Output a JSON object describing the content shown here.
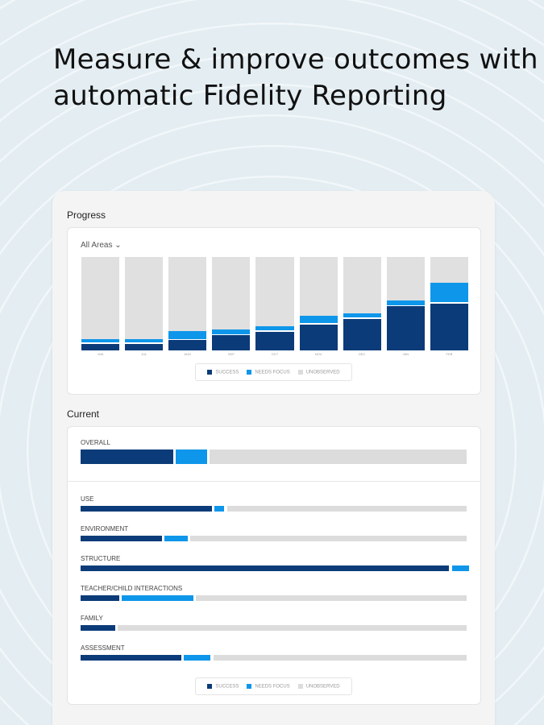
{
  "headline": "Measure & improve outcomes with automatic Fidelity Reporting",
  "colors": {
    "success": "#0b3b78",
    "needs_focus": "#0e96ea",
    "unobserved": "#dcdcdc"
  },
  "progress": {
    "title": "Progress",
    "filter": "All Areas",
    "filter_icon": "chevron-down-icon"
  },
  "current": {
    "title": "Current"
  },
  "legend": {
    "success": "SUCCESS",
    "needs_focus": "NEEDS FOCUS",
    "unobserved": "UNOBSERVED"
  },
  "chart_data": [
    {
      "type": "bar",
      "stacked": true,
      "title": "Progress",
      "categories": [
        "JUN",
        "JUL",
        "AUG",
        "SEP",
        "OCT",
        "NOV",
        "DEC",
        "JAN",
        "FEB"
      ],
      "ylim": [
        0,
        100
      ],
      "series": [
        {
          "name": "SUCCESS",
          "values": [
            7,
            7,
            11,
            16,
            20,
            28,
            34,
            47,
            50
          ]
        },
        {
          "name": "NEEDS FOCUS",
          "values": [
            4,
            4,
            8,
            5,
            4,
            8,
            4,
            5,
            21
          ]
        },
        {
          "name": "UNOBSERVED",
          "values": [
            89,
            89,
            81,
            79,
            76,
            64,
            62,
            48,
            29
          ]
        }
      ]
    },
    {
      "type": "bar",
      "orientation": "horizontal",
      "stacked": true,
      "title": "Current",
      "categories": [
        "OVERALL",
        "USE",
        "ENVIRONMENT",
        "STRUCTURE",
        "TEACHER/CHILD INTERACTIONS",
        "FAMILY",
        "ASSESSMENT"
      ],
      "xlim": [
        0,
        100
      ],
      "series": [
        {
          "name": "SUCCESS",
          "values": [
            24,
            34,
            21,
            95.5,
            10,
            9,
            26
          ]
        },
        {
          "name": "NEEDS FOCUS",
          "values": [
            8,
            2.5,
            6,
            4.5,
            18.5,
            0,
            7
          ]
        },
        {
          "name": "UNOBSERVED",
          "values": [
            68,
            63.5,
            73,
            0,
            71.5,
            91,
            67
          ]
        }
      ]
    }
  ]
}
